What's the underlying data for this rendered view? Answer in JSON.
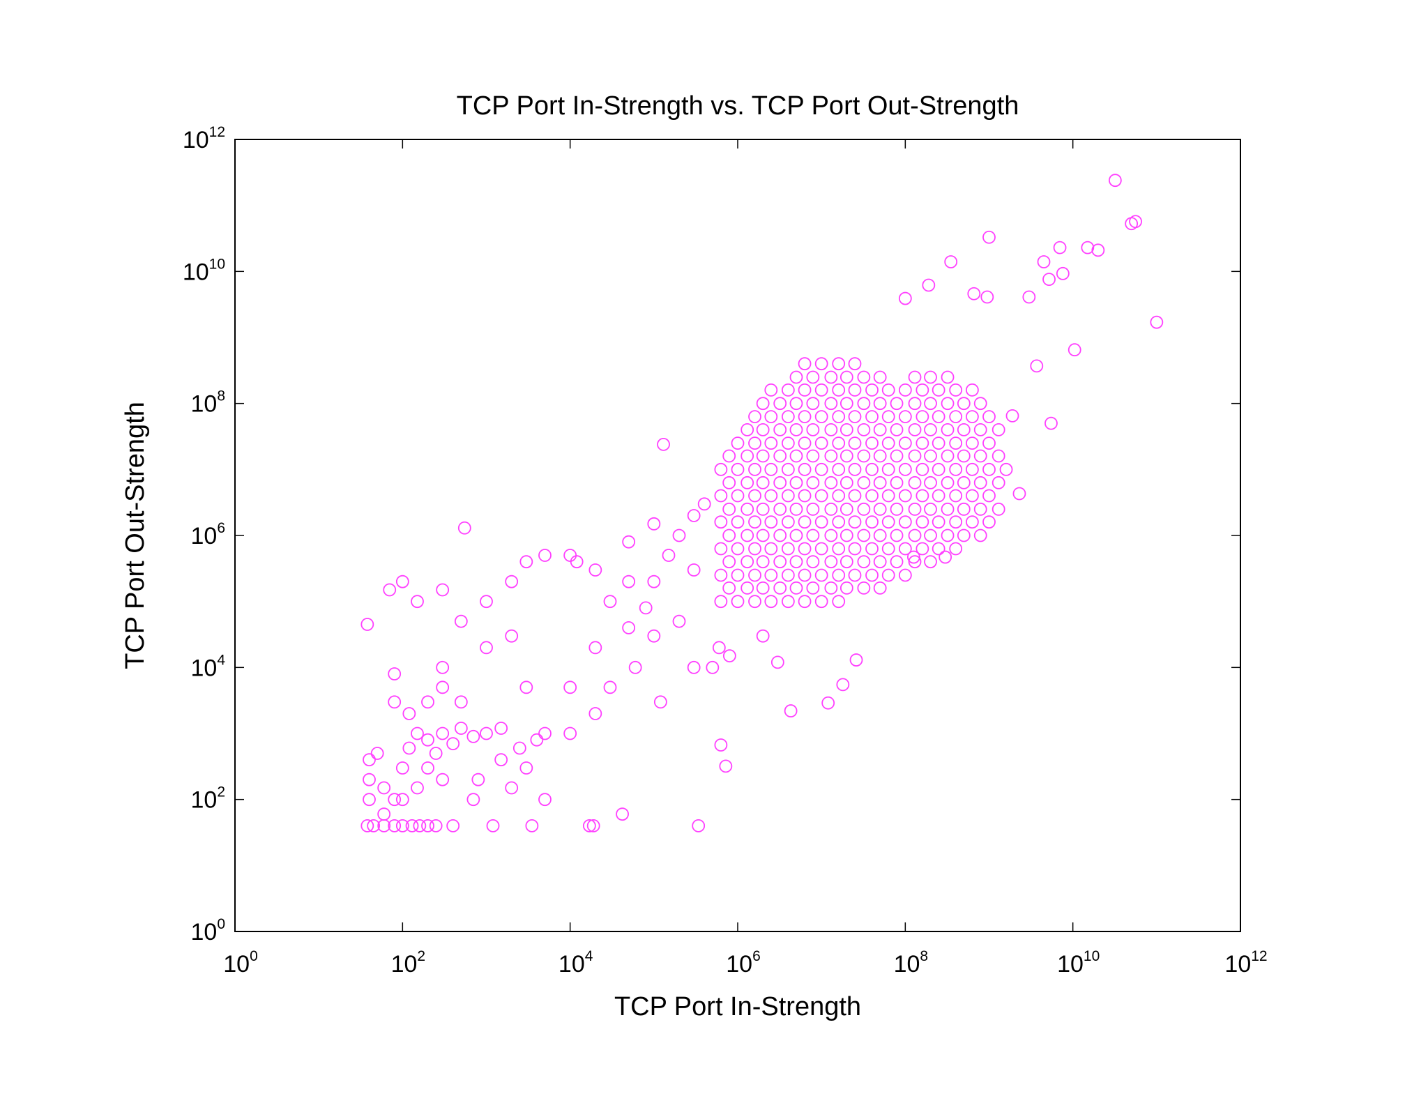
{
  "chart_data": {
    "type": "scatter",
    "title": "TCP Port In-Strength vs. TCP Port Out-Strength",
    "x_label": "TCP Port In-Strength",
    "y_label": "TCP Port Out-Strength",
    "xscale": "log",
    "yscale": "log",
    "grid": false,
    "color": "#ff40ff",
    "xlim": [
      1,
      1000000000000
    ],
    "ylim": [
      1,
      1000000000000
    ],
    "xticks": [
      {
        "value": 1,
        "label": "10",
        "power": "0"
      },
      {
        "value": 100,
        "label": "10",
        "power": "2"
      },
      {
        "value": 10000,
        "label": "10",
        "power": "4"
      },
      {
        "value": 1000000,
        "label": "10",
        "power": "6"
      },
      {
        "value": 100000000,
        "label": "10",
        "power": "8"
      },
      {
        "value": 10000000000,
        "label": "10",
        "power": "10"
      },
      {
        "value": 1000000000000,
        "label": "10",
        "power": "12"
      }
    ],
    "yticks": [
      {
        "value": 1,
        "label": "10",
        "power": "0"
      },
      {
        "value": 100,
        "label": "10",
        "power": "2"
      },
      {
        "value": 10000,
        "label": "10",
        "power": "4"
      },
      {
        "value": 1000000,
        "label": "10",
        "power": "6"
      },
      {
        "value": 100000000,
        "label": "10",
        "power": "8"
      },
      {
        "value": 10000000000,
        "label": "10",
        "power": "10"
      },
      {
        "value": 1000000000000,
        "label": "10",
        "power": "12"
      }
    ],
    "x": [
      630000.0,
      1000000.0,
      1600000.0,
      2500000.0,
      4000000.0,
      6300000.0,
      10000000.0,
      16000000.0,
      790000.0,
      1300000.0,
      2000000.0,
      3200000.0,
      5000000.0,
      7900000.0,
      13000000.0,
      20000000.0,
      32000000.0,
      50000000.0,
      630000.0,
      1000000.0,
      1600000.0,
      2500000.0,
      4000000.0,
      6300000.0,
      10000000.0,
      16000000.0,
      25000000.0,
      40000000.0,
      63000000.0,
      100000000.0,
      790000.0,
      1300000.0,
      2000000.0,
      3200000.0,
      5000000.0,
      7900000.0,
      13000000.0,
      20000000.0,
      32000000.0,
      50000000.0,
      79000000.0,
      130000000.0,
      200000000.0,
      630000.0,
      1000000.0,
      1600000.0,
      2500000.0,
      4000000.0,
      6300000.0,
      10000000.0,
      16000000.0,
      25000000.0,
      40000000.0,
      63000000.0,
      100000000.0,
      160000000.0,
      250000000.0,
      400000000.0,
      790000.0,
      1300000.0,
      2000000.0,
      3200000.0,
      5000000.0,
      7900000.0,
      13000000.0,
      20000000.0,
      32000000.0,
      50000000.0,
      79000000.0,
      130000000.0,
      200000000.0,
      320000000.0,
      500000000.0,
      790000000.0,
      630000.0,
      1000000.0,
      1600000.0,
      2500000.0,
      4000000.0,
      6300000.0,
      10000000.0,
      16000000.0,
      25000000.0,
      40000000.0,
      63000000.0,
      100000000.0,
      160000000.0,
      250000000.0,
      400000000.0,
      630000000.0,
      1000000000.0,
      790000.0,
      1300000.0,
      2000000.0,
      3200000.0,
      5000000.0,
      7900000.0,
      13000000.0,
      20000000.0,
      32000000.0,
      50000000.0,
      79000000.0,
      130000000.0,
      200000000.0,
      320000000.0,
      500000000.0,
      790000000.0,
      1300000000.0,
      630000.0,
      1000000.0,
      1600000.0,
      2500000.0,
      4000000.0,
      6300000.0,
      10000000.0,
      16000000.0,
      25000000.0,
      40000000.0,
      63000000.0,
      100000000.0,
      160000000.0,
      250000000.0,
      400000000.0,
      630000000.0,
      1000000000.0,
      790000.0,
      1300000.0,
      2000000.0,
      3200000.0,
      5000000.0,
      7900000.0,
      13000000.0,
      20000000.0,
      32000000.0,
      50000000.0,
      79000000.0,
      130000000.0,
      200000000.0,
      320000000.0,
      500000000.0,
      790000000.0,
      1300000000.0,
      630000.0,
      1000000.0,
      1600000.0,
      2500000.0,
      4000000.0,
      6300000.0,
      10000000.0,
      16000000.0,
      25000000.0,
      40000000.0,
      63000000.0,
      100000000.0,
      160000000.0,
      250000000.0,
      400000000.0,
      630000000.0,
      1000000000.0,
      1600000000.0,
      790000.0,
      1300000.0,
      2000000.0,
      3200000.0,
      5000000.0,
      7900000.0,
      13000000.0,
      20000000.0,
      32000000.0,
      50000000.0,
      79000000.0,
      130000000.0,
      200000000.0,
      320000000.0,
      500000000.0,
      790000000.0,
      1300000000.0,
      1000000.0,
      1600000.0,
      2500000.0,
      4000000.0,
      6300000.0,
      10000000.0,
      16000000.0,
      25000000.0,
      40000000.0,
      63000000.0,
      100000000.0,
      160000000.0,
      250000000.0,
      400000000.0,
      630000000.0,
      1000000000.0,
      1300000.0,
      2000000.0,
      3200000.0,
      5000000.0,
      7900000.0,
      13000000.0,
      20000000.0,
      32000000.0,
      50000000.0,
      79000000.0,
      130000000.0,
      200000000.0,
      320000000.0,
      500000000.0,
      790000000.0,
      1300000000.0,
      1600000.0,
      2500000.0,
      4000000.0,
      6300000.0,
      10000000.0,
      16000000.0,
      25000000.0,
      40000000.0,
      63000000.0,
      100000000.0,
      160000000.0,
      250000000.0,
      400000000.0,
      630000000.0,
      1000000000.0,
      2000000.0,
      3200000.0,
      5000000.0,
      7900000.0,
      13000000.0,
      20000000.0,
      32000000.0,
      50000000.0,
      79000000.0,
      130000000.0,
      200000000.0,
      320000000.0,
      500000000.0,
      790000000.0,
      2500000.0,
      4000000.0,
      6300000.0,
      10000000.0,
      16000000.0,
      25000000.0,
      40000000.0,
      63000000.0,
      100000000.0,
      160000000.0,
      250000000.0,
      400000000.0,
      630000000.0,
      5000000.0,
      7900000.0,
      13000000.0,
      20000000.0,
      32000000.0,
      50000000.0,
      130000000.0,
      200000000.0,
      320000000.0,
      6300000.0,
      10000000.0,
      16000000.0,
      25000000.0,
      32000000000.0,
      56000000000.0,
      50000000000.0,
      100000000000.0,
      1000000000.0,
      7000000000.0,
      15000000000.0,
      20000000000.0,
      350000000.0,
      4500000000.0,
      7600000000.0,
      190000000.0,
      5200000000.0,
      660000000.0,
      950000000.0,
      3000000000.0,
      100000000.0,
      10500000000.0,
      3700000000.0,
      1900000000.0,
      5500000000.0,
      2300000000.0,
      300000000.0,
      126000000.0,
      26000000.0,
      18000000.0,
      12000000.0,
      4300000.0,
      630000.0,
      720000.0,
      340000.0,
      42000.0,
      17000.0,
      19000.0,
      130000.0,
      550,
      38,
      38,
      45,
      60,
      80,
      100,
      130,
      160,
      200,
      250,
      400,
      1200,
      3500,
      40,
      40,
      40,
      60,
      80,
      100,
      120,
      150,
      200,
      300,
      400,
      500,
      700,
      1000,
      1500,
      120,
      200,
      300,
      500,
      80,
      300,
      1000,
      2000,
      150,
      300,
      100,
      70,
      500,
      1000,
      2000,
      3000,
      5000,
      10000.0,
      12000.0,
      20000.0,
      30000.0,
      50000.0,
      80000.0,
      100000.0,
      150000.0,
      200000.0,
      300000.0,
      400000.0,
      100000.0,
      50000.0,
      20000.0,
      50000.0,
      100000.0,
      300000.0,
      500000.0,
      10000.0,
      20000.0,
      5000.0,
      3000.0,
      10000.0,
      3000.0,
      800,
      2000,
      5000,
      700,
      120000.0,
      30000.0,
      60000.0,
      200000.0,
      300000.0,
      600000.0,
      800000.0,
      2000000.0,
      3000000.0,
      150,
      200,
      300,
      60,
      100,
      50,
      80,
      250,
      1500,
      2500,
      4000
    ],
    "y": [
      100000.0,
      100000.0,
      100000.0,
      100000.0,
      100000.0,
      100000.0,
      100000.0,
      100000.0,
      160000.0,
      160000.0,
      160000.0,
      160000.0,
      160000.0,
      160000.0,
      160000.0,
      160000.0,
      160000.0,
      160000.0,
      250000.0,
      250000.0,
      250000.0,
      250000.0,
      250000.0,
      250000.0,
      250000.0,
      250000.0,
      250000.0,
      250000.0,
      250000.0,
      250000.0,
      400000.0,
      400000.0,
      400000.0,
      400000.0,
      400000.0,
      400000.0,
      400000.0,
      400000.0,
      400000.0,
      400000.0,
      400000.0,
      400000.0,
      400000.0,
      630000.0,
      630000.0,
      630000.0,
      630000.0,
      630000.0,
      630000.0,
      630000.0,
      630000.0,
      630000.0,
      630000.0,
      630000.0,
      630000.0,
      630000.0,
      630000.0,
      630000.0,
      1000000.0,
      1000000.0,
      1000000.0,
      1000000.0,
      1000000.0,
      1000000.0,
      1000000.0,
      1000000.0,
      1000000.0,
      1000000.0,
      1000000.0,
      1000000.0,
      1000000.0,
      1000000.0,
      1000000.0,
      1000000.0,
      1600000.0,
      1600000.0,
      1600000.0,
      1600000.0,
      1600000.0,
      1600000.0,
      1600000.0,
      1600000.0,
      1600000.0,
      1600000.0,
      1600000.0,
      1600000.0,
      1600000.0,
      1600000.0,
      1600000.0,
      1600000.0,
      1600000.0,
      2500000.0,
      2500000.0,
      2500000.0,
      2500000.0,
      2500000.0,
      2500000.0,
      2500000.0,
      2500000.0,
      2500000.0,
      2500000.0,
      2500000.0,
      2500000.0,
      2500000.0,
      2500000.0,
      2500000.0,
      2500000.0,
      2500000.0,
      4000000.0,
      4000000.0,
      4000000.0,
      4000000.0,
      4000000.0,
      4000000.0,
      4000000.0,
      4000000.0,
      4000000.0,
      4000000.0,
      4000000.0,
      4000000.0,
      4000000.0,
      4000000.0,
      4000000.0,
      4000000.0,
      4000000.0,
      6300000.0,
      6300000.0,
      6300000.0,
      6300000.0,
      6300000.0,
      6300000.0,
      6300000.0,
      6300000.0,
      6300000.0,
      6300000.0,
      6300000.0,
      6300000.0,
      6300000.0,
      6300000.0,
      6300000.0,
      6300000.0,
      6300000.0,
      10000000.0,
      10000000.0,
      10000000.0,
      10000000.0,
      10000000.0,
      10000000.0,
      10000000.0,
      10000000.0,
      10000000.0,
      10000000.0,
      10000000.0,
      10000000.0,
      10000000.0,
      10000000.0,
      10000000.0,
      10000000.0,
      10000000.0,
      10000000.0,
      16000000.0,
      16000000.0,
      16000000.0,
      16000000.0,
      16000000.0,
      16000000.0,
      16000000.0,
      16000000.0,
      16000000.0,
      16000000.0,
      16000000.0,
      16000000.0,
      16000000.0,
      16000000.0,
      16000000.0,
      16000000.0,
      16000000.0,
      25000000.0,
      25000000.0,
      25000000.0,
      25000000.0,
      25000000.0,
      25000000.0,
      25000000.0,
      25000000.0,
      25000000.0,
      25000000.0,
      25000000.0,
      25000000.0,
      25000000.0,
      25000000.0,
      25000000.0,
      25000000.0,
      40000000.0,
      40000000.0,
      40000000.0,
      40000000.0,
      40000000.0,
      40000000.0,
      40000000.0,
      40000000.0,
      40000000.0,
      40000000.0,
      40000000.0,
      40000000.0,
      40000000.0,
      40000000.0,
      40000000.0,
      40000000.0,
      63000000.0,
      63000000.0,
      63000000.0,
      63000000.0,
      63000000.0,
      63000000.0,
      63000000.0,
      63000000.0,
      63000000.0,
      63000000.0,
      63000000.0,
      63000000.0,
      63000000.0,
      63000000.0,
      63000000.0,
      100000000.0,
      100000000.0,
      100000000.0,
      100000000.0,
      100000000.0,
      100000000.0,
      100000000.0,
      100000000.0,
      100000000.0,
      100000000.0,
      100000000.0,
      100000000.0,
      100000000.0,
      100000000.0,
      160000000.0,
      160000000.0,
      160000000.0,
      160000000.0,
      160000000.0,
      160000000.0,
      160000000.0,
      160000000.0,
      160000000.0,
      160000000.0,
      160000000.0,
      160000000.0,
      160000000.0,
      250000000.0,
      250000000.0,
      250000000.0,
      250000000.0,
      250000000.0,
      250000000.0,
      250000000.0,
      250000000.0,
      250000000.0,
      400000000.0,
      400000000.0,
      400000000.0,
      400000000.0,
      240000000000.0,
      57000000000.0,
      53000000000.0,
      1700000000.0,
      33000000000.0,
      23000000000.0,
      23000000000.0,
      21000000000.0,
      14000000000.0,
      14000000000.0,
      9300000000.0,
      6200000000.0,
      7600000000.0,
      4600000000.0,
      4100000000.0,
      4100000000.0,
      3900000000.0,
      650000000.0,
      370000000.0,
      65000000.0,
      50000000.0,
      4300000.0,
      470000.0,
      470000.0,
      13000.0,
      5500.0,
      2900.0,
      2200.0,
      670,
      320,
      40,
      60,
      40,
      40,
      24000000.0,
      1300000.0,
      45000.0,
      40,
      40,
      40,
      40,
      40,
      40,
      40,
      40,
      40,
      40,
      40,
      40,
      100,
      200,
      400,
      150,
      100,
      300,
      600,
      1000,
      800,
      1000,
      700,
      1200,
      900,
      1000,
      1200,
      2000,
      3000,
      5000,
      3000,
      8000,
      10000.0,
      20000.0,
      30000.0,
      100000.0,
      150000.0,
      200000.0,
      150000.0,
      50000.0,
      100000.0,
      200000.0,
      400000.0,
      500000.0,
      500000.0,
      400000.0,
      300000.0,
      100000.0,
      200000.0,
      80000.0,
      200000.0,
      500000.0,
      1000000.0,
      2000000.0,
      3000000.0,
      1500000.0,
      800000.0,
      20000.0,
      40000.0,
      30000.0,
      10000.0,
      10000.0,
      5000.0,
      2000.0,
      1000.0,
      300,
      1000.0,
      5000.0,
      200,
      150,
      100,
      100,
      3000.0,
      5000.0,
      10000.0,
      50000.0,
      300000.0,
      20000.0,
      15000.0,
      30000.0,
      12000.0,
      150,
      300,
      200,
      60,
      100,
      500,
      3000,
      500,
      400,
      600,
      800
    ]
  }
}
